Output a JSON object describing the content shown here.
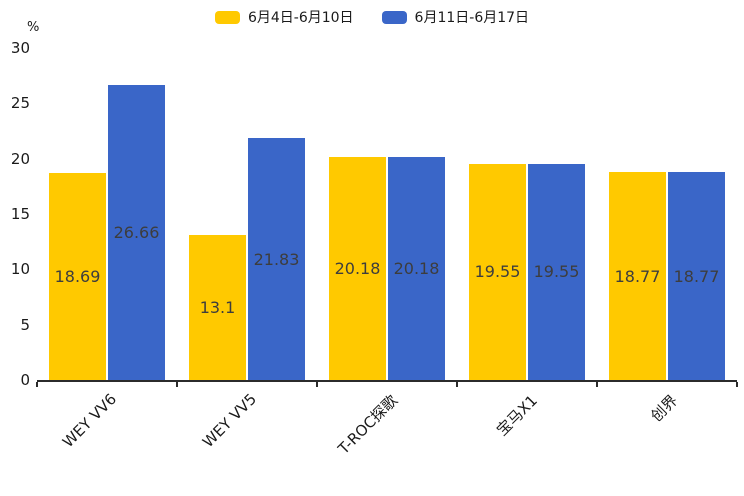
{
  "chart_data": {
    "type": "bar",
    "title": "",
    "unit_label": "%",
    "categories": [
      "WEY VV6",
      "WEY VV5",
      "T-ROC探歌",
      "宝马X1",
      "创界"
    ],
    "series": [
      {
        "name": "6月4日-6月10日",
        "color": "#FFC900",
        "values": [
          18.69,
          13.1,
          20.18,
          19.55,
          18.77
        ]
      },
      {
        "name": "6月11日-6月17日",
        "color": "#3A66C8",
        "values": [
          26.66,
          21.83,
          20.18,
          19.55,
          18.77
        ]
      }
    ],
    "ylim": [
      0,
      30
    ],
    "yticks": [
      0,
      5,
      10,
      15,
      20,
      25,
      30
    ],
    "grid": false,
    "legend_position": "top",
    "value_label_color": "#3d3d3d",
    "axis_color": "#2b2b2b"
  }
}
